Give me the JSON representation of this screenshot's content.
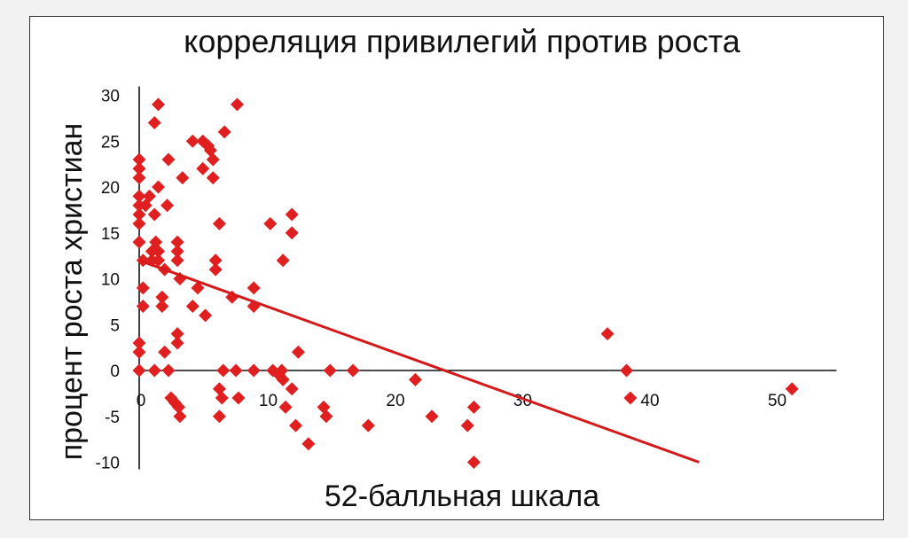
{
  "chart_data": {
    "type": "scatter",
    "title": "корреляция привилегий против роста",
    "xlabel": "52-балльная шкала",
    "ylabel": "процент роста христиан",
    "xlim": [
      0,
      55
    ],
    "ylim": [
      -10,
      30
    ],
    "xticks": [
      0,
      10,
      20,
      30,
      40,
      50
    ],
    "yticks": [
      30,
      25,
      20,
      15,
      10,
      5,
      0,
      -5,
      -10
    ],
    "grid": false,
    "legend": "none",
    "marker": "diamond",
    "colors": {
      "points": "#e02020",
      "trend": "#d41a1a",
      "axis": "#111111"
    },
    "trendline": {
      "x": [
        0,
        44
      ],
      "y": [
        12,
        -10
      ]
    },
    "points": [
      {
        "x": 0,
        "y": 23
      },
      {
        "x": 0,
        "y": 22
      },
      {
        "x": 0,
        "y": 21
      },
      {
        "x": 0,
        "y": 19
      },
      {
        "x": 0,
        "y": 18
      },
      {
        "x": 0,
        "y": 17
      },
      {
        "x": 0,
        "y": 16
      },
      {
        "x": 0,
        "y": 14
      },
      {
        "x": 0,
        "y": 3
      },
      {
        "x": 0,
        "y": 2
      },
      {
        "x": 0,
        "y": 0
      },
      {
        "x": 0.3,
        "y": 12
      },
      {
        "x": 0.3,
        "y": 9
      },
      {
        "x": 0.3,
        "y": 7
      },
      {
        "x": 0.5,
        "y": 18
      },
      {
        "x": 0.8,
        "y": 19
      },
      {
        "x": 1,
        "y": 12
      },
      {
        "x": 1,
        "y": 13
      },
      {
        "x": 1.2,
        "y": 17
      },
      {
        "x": 1.2,
        "y": 27
      },
      {
        "x": 1.3,
        "y": 14
      },
      {
        "x": 1.5,
        "y": 29
      },
      {
        "x": 1.5,
        "y": 20
      },
      {
        "x": 1.5,
        "y": 13
      },
      {
        "x": 1.5,
        "y": 12
      },
      {
        "x": 1.2,
        "y": 0
      },
      {
        "x": 1.8,
        "y": 8
      },
      {
        "x": 1.8,
        "y": 7
      },
      {
        "x": 2,
        "y": 11
      },
      {
        "x": 2,
        "y": 2
      },
      {
        "x": 2.2,
        "y": 18
      },
      {
        "x": 2.3,
        "y": 23
      },
      {
        "x": 2.3,
        "y": 0
      },
      {
        "x": 2.5,
        "y": -3
      },
      {
        "x": 2.8,
        "y": -3.5
      },
      {
        "x": 3,
        "y": 14
      },
      {
        "x": 3,
        "y": 13
      },
      {
        "x": 3,
        "y": 12
      },
      {
        "x": 3,
        "y": 4
      },
      {
        "x": 3,
        "y": 3
      },
      {
        "x": 3.1,
        "y": -4
      },
      {
        "x": 3.2,
        "y": -5
      },
      {
        "x": 3.2,
        "y": 10
      },
      {
        "x": 3.4,
        "y": 21
      },
      {
        "x": 4.2,
        "y": 25
      },
      {
        "x": 4.2,
        "y": 7
      },
      {
        "x": 4.6,
        "y": 9
      },
      {
        "x": 5,
        "y": 25
      },
      {
        "x": 5,
        "y": 22
      },
      {
        "x": 5.2,
        "y": 6
      },
      {
        "x": 5.4,
        "y": 24.5
      },
      {
        "x": 5.6,
        "y": 24
      },
      {
        "x": 5.8,
        "y": 21
      },
      {
        "x": 5.8,
        "y": 23
      },
      {
        "x": 6,
        "y": 12
      },
      {
        "x": 6,
        "y": 11
      },
      {
        "x": 6.3,
        "y": 16
      },
      {
        "x": 6.3,
        "y": -5
      },
      {
        "x": 6.3,
        "y": -2
      },
      {
        "x": 6.5,
        "y": -3
      },
      {
        "x": 6.6,
        "y": 0
      },
      {
        "x": 6.7,
        "y": 26
      },
      {
        "x": 7.3,
        "y": 8
      },
      {
        "x": 7.6,
        "y": 0
      },
      {
        "x": 7.7,
        "y": 29
      },
      {
        "x": 7.8,
        "y": -3
      },
      {
        "x": 9,
        "y": 9
      },
      {
        "x": 9,
        "y": 7
      },
      {
        "x": 9,
        "y": 0
      },
      {
        "x": 10.3,
        "y": 16
      },
      {
        "x": 10.5,
        "y": 0
      },
      {
        "x": 11,
        "y": -0.5
      },
      {
        "x": 11.2,
        "y": 0
      },
      {
        "x": 11.3,
        "y": -1
      },
      {
        "x": 11.3,
        "y": 12
      },
      {
        "x": 11.5,
        "y": -4
      },
      {
        "x": 12,
        "y": -2
      },
      {
        "x": 12,
        "y": 17
      },
      {
        "x": 12,
        "y": 15
      },
      {
        "x": 12.3,
        "y": -6
      },
      {
        "x": 12.5,
        "y": 2
      },
      {
        "x": 13.3,
        "y": -8
      },
      {
        "x": 14.5,
        "y": -4
      },
      {
        "x": 14.7,
        "y": -5
      },
      {
        "x": 15,
        "y": 0
      },
      {
        "x": 16.8,
        "y": 0
      },
      {
        "x": 18,
        "y": -6
      },
      {
        "x": 21.7,
        "y": -1
      },
      {
        "x": 23,
        "y": -5
      },
      {
        "x": 25.8,
        "y": -6
      },
      {
        "x": 26.3,
        "y": -4
      },
      {
        "x": 26.3,
        "y": -10
      },
      {
        "x": 36.8,
        "y": 4
      },
      {
        "x": 38.3,
        "y": 0
      },
      {
        "x": 38.6,
        "y": -3
      },
      {
        "x": 51.3,
        "y": -2
      }
    ]
  }
}
